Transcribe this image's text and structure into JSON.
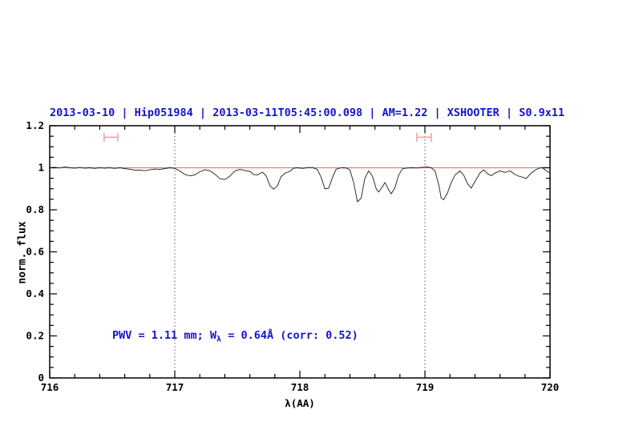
{
  "chart_data": {
    "type": "line",
    "title": "2013-03-10 | Hip051984 | 2013-03-11T05:45:00.098 | AM=1.22 | XSHOOTER | S0.9x11",
    "title_color": "#1414cd",
    "xlabel": "λ(AA)",
    "ylabel": "norm. flux",
    "xlim": [
      716,
      720
    ],
    "ylim": [
      0,
      1.2
    ],
    "x_major_ticks": [
      716,
      717,
      718,
      719,
      720
    ],
    "x_tick_labels": [
      "716",
      "717",
      "718",
      "719",
      "720"
    ],
    "x_minor_step": 0.2,
    "y_major_ticks": [
      0,
      0.2,
      0.4,
      0.6,
      0.8,
      1,
      1.2
    ],
    "y_tick_labels": [
      "0",
      "0.2",
      "0.4",
      "0.6",
      "0.8",
      "1",
      "1.2"
    ],
    "y_minor_step": 0.05,
    "grid": "off",
    "legend": "none",
    "dotted_vlines": [
      717,
      719
    ],
    "continuum_line": {
      "y": 1.0,
      "color": "#e87c7c"
    },
    "range_markers": {
      "color": "#f2a2a2",
      "y": 1.145,
      "cap_half_height": 0.021,
      "spans": [
        [
          716.435,
          716.545
        ],
        [
          718.935,
          719.05
        ]
      ]
    },
    "annotation": {
      "prefix": "PWV  =  1.11  mm; W",
      "sub": "λ",
      "suffix": "  =  0.64Å  (corr: 0.52)",
      "color": "#1414cd"
    },
    "series": [
      {
        "name": "spectrum",
        "color": "#1c1c1c",
        "points": [
          [
            716.0,
            1.0
          ],
          [
            716.04,
            1.002
          ],
          [
            716.08,
            0.999
          ],
          [
            716.12,
            1.004
          ],
          [
            716.16,
            1.0
          ],
          [
            716.2,
            0.998
          ],
          [
            716.24,
            1.001
          ],
          [
            716.28,
            0.998
          ],
          [
            716.32,
            1.0
          ],
          [
            716.36,
            0.997
          ],
          [
            716.4,
            1.0
          ],
          [
            716.44,
            0.998
          ],
          [
            716.48,
            1.0
          ],
          [
            716.52,
            0.997
          ],
          [
            716.56,
            1.0
          ],
          [
            716.6,
            0.996
          ],
          [
            716.64,
            0.993
          ],
          [
            716.68,
            0.988
          ],
          [
            716.72,
            0.989
          ],
          [
            716.76,
            0.986
          ],
          [
            716.8,
            0.99
          ],
          [
            716.84,
            0.994
          ],
          [
            716.88,
            0.992
          ],
          [
            716.92,
            0.996
          ],
          [
            716.96,
            1.0
          ],
          [
            717.0,
            0.997
          ],
          [
            717.04,
            0.985
          ],
          [
            717.08,
            0.968
          ],
          [
            717.12,
            0.962
          ],
          [
            717.16,
            0.966
          ],
          [
            717.2,
            0.981
          ],
          [
            717.24,
            0.99
          ],
          [
            717.28,
            0.986
          ],
          [
            717.32,
            0.97
          ],
          [
            717.36,
            0.948
          ],
          [
            717.4,
            0.944
          ],
          [
            717.44,
            0.96
          ],
          [
            717.48,
            0.985
          ],
          [
            717.52,
            0.992
          ],
          [
            717.56,
            0.987
          ],
          [
            717.6,
            0.983
          ],
          [
            717.63,
            0.968
          ],
          [
            717.66,
            0.966
          ],
          [
            717.7,
            0.979
          ],
          [
            717.73,
            0.962
          ],
          [
            717.76,
            0.915
          ],
          [
            717.79,
            0.898
          ],
          [
            717.82,
            0.913
          ],
          [
            717.85,
            0.958
          ],
          [
            717.88,
            0.974
          ],
          [
            717.92,
            0.983
          ],
          [
            717.95,
            0.998
          ],
          [
            717.98,
            1.0
          ],
          [
            718.02,
            0.997
          ],
          [
            718.06,
            1.0
          ],
          [
            718.1,
            1.001
          ],
          [
            718.14,
            0.992
          ],
          [
            718.17,
            0.955
          ],
          [
            718.2,
            0.9
          ],
          [
            718.23,
            0.903
          ],
          [
            718.26,
            0.953
          ],
          [
            718.29,
            0.993
          ],
          [
            718.33,
            1.0
          ],
          [
            718.37,
            0.999
          ],
          [
            718.4,
            0.99
          ],
          [
            718.43,
            0.93
          ],
          [
            718.46,
            0.838
          ],
          [
            718.49,
            0.855
          ],
          [
            718.52,
            0.95
          ],
          [
            718.55,
            0.985
          ],
          [
            718.58,
            0.96
          ],
          [
            718.61,
            0.9
          ],
          [
            718.63,
            0.884
          ],
          [
            718.66,
            0.91
          ],
          [
            718.68,
            0.93
          ],
          [
            718.71,
            0.895
          ],
          [
            718.73,
            0.876
          ],
          [
            718.76,
            0.905
          ],
          [
            718.79,
            0.965
          ],
          [
            718.82,
            0.995
          ],
          [
            718.86,
            0.999
          ],
          [
            718.9,
            1.0
          ],
          [
            718.94,
            0.999
          ],
          [
            718.98,
            1.002
          ],
          [
            719.02,
            1.004
          ],
          [
            719.05,
            1.0
          ],
          [
            719.08,
            0.985
          ],
          [
            719.11,
            0.92
          ],
          [
            719.13,
            0.855
          ],
          [
            719.15,
            0.848
          ],
          [
            719.18,
            0.88
          ],
          [
            719.21,
            0.93
          ],
          [
            719.24,
            0.965
          ],
          [
            719.28,
            0.985
          ],
          [
            719.31,
            0.965
          ],
          [
            719.34,
            0.925
          ],
          [
            719.37,
            0.903
          ],
          [
            719.4,
            0.935
          ],
          [
            719.44,
            0.975
          ],
          [
            719.47,
            0.99
          ],
          [
            719.5,
            0.972
          ],
          [
            719.53,
            0.962
          ],
          [
            719.56,
            0.975
          ],
          [
            719.6,
            0.985
          ],
          [
            719.64,
            0.978
          ],
          [
            719.68,
            0.985
          ],
          [
            719.72,
            0.968
          ],
          [
            719.75,
            0.96
          ],
          [
            719.78,
            0.955
          ],
          [
            719.81,
            0.949
          ],
          [
            719.85,
            0.975
          ],
          [
            719.88,
            0.988
          ],
          [
            719.91,
            0.998
          ],
          [
            719.94,
            1.0
          ],
          [
            719.97,
            0.985
          ],
          [
            720.0,
            0.975
          ]
        ]
      }
    ]
  }
}
